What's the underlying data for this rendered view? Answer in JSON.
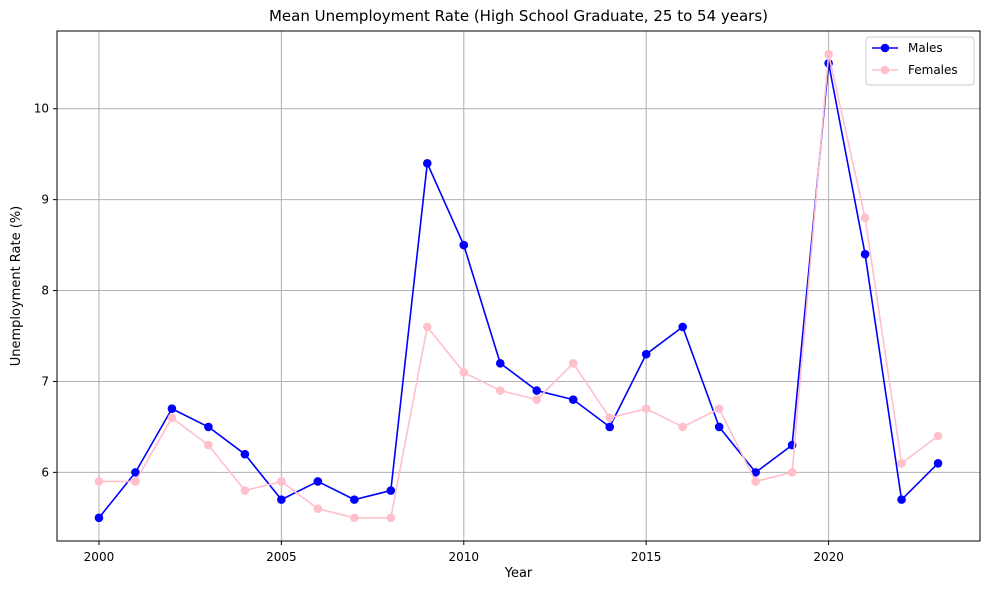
{
  "chart_data": {
    "type": "line",
    "title": "Mean Unemployment Rate (High School Graduate, 25 to 54 years)",
    "xlabel": "Year",
    "ylabel": "Unemployment Rate (%)",
    "x": [
      2000,
      2001,
      2002,
      2003,
      2004,
      2005,
      2006,
      2007,
      2008,
      2009,
      2010,
      2011,
      2012,
      2013,
      2014,
      2015,
      2016,
      2017,
      2018,
      2019,
      2020,
      2021,
      2022,
      2023
    ],
    "xticks": [
      2000,
      2005,
      2010,
      2015,
      2020
    ],
    "yticks": [
      6,
      7,
      8,
      9,
      10
    ],
    "xlim": [
      1998.85,
      2024.15
    ],
    "ylim": [
      5.245,
      10.855
    ],
    "grid": true,
    "legend_position": "top-right",
    "series": [
      {
        "name": "Males",
        "color": "#0000ff",
        "marker": "circle",
        "values": [
          5.5,
          6.0,
          6.7,
          6.5,
          6.2,
          5.7,
          5.9,
          5.7,
          5.8,
          9.4,
          8.5,
          7.2,
          6.9,
          6.8,
          6.5,
          7.3,
          7.6,
          6.5,
          6.0,
          6.3,
          10.5,
          8.4,
          5.7,
          6.1
        ]
      },
      {
        "name": "Females",
        "color": "#ffc0cb",
        "marker": "circle",
        "values": [
          5.9,
          5.9,
          6.6,
          6.3,
          5.8,
          5.9,
          5.6,
          5.5,
          5.5,
          7.6,
          7.1,
          6.9,
          6.8,
          7.2,
          6.6,
          6.7,
          6.5,
          6.7,
          5.9,
          6.0,
          10.6,
          8.8,
          6.1,
          6.4
        ]
      }
    ]
  }
}
